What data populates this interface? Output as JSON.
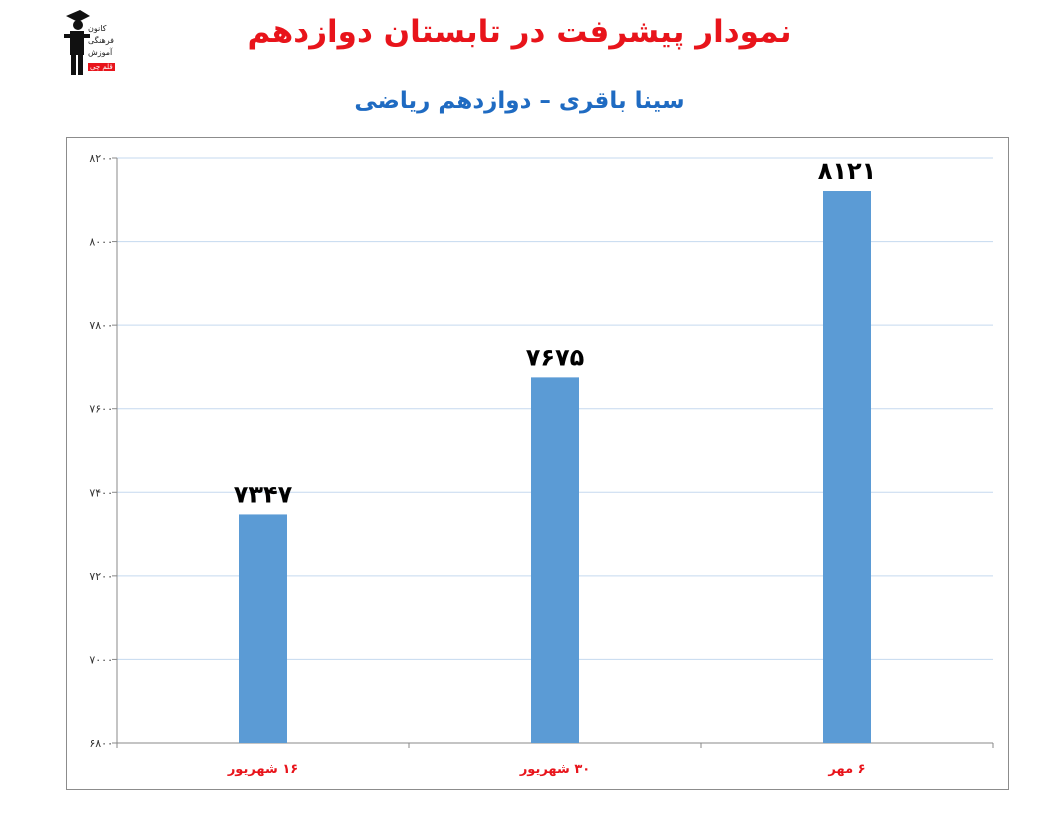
{
  "header": {
    "title": "نمودار پیشرفت در تابستان دوازدهم",
    "subtitle": "سینا باقری – دوازدهم ریاضی"
  },
  "logo": {
    "lines": [
      "کانون",
      "فرهنگی",
      "آموزش"
    ],
    "badge": "قلم چی"
  },
  "colors": {
    "title": "#e8141b",
    "subtitle": "#1f6bc2",
    "bar": "#5b9bd5",
    "grid": "#c5d9ef",
    "category_label": "#e8141b",
    "data_label": "#000000"
  },
  "chart_data": {
    "type": "bar",
    "categories": [
      "۱۶ شهریور",
      "۳۰ شهریور",
      "۶ مهر"
    ],
    "values": [
      7347,
      7675,
      8121
    ],
    "value_labels": [
      "۷۳۴۷",
      "۷۶۷۵",
      "۸۱۲۱"
    ],
    "title": "",
    "xlabel": "",
    "ylabel": "",
    "ylim": [
      6800,
      8200
    ],
    "yticks": [
      6800,
      7000,
      7200,
      7400,
      7600,
      7800,
      8000,
      8200
    ],
    "ytick_labels": [
      "۶۸۰۰",
      "۷۰۰۰",
      "۷۲۰۰",
      "۷۴۰۰",
      "۷۶۰۰",
      "۷۸۰۰",
      "۸۰۰۰",
      "۸۲۰۰"
    ],
    "grid": true,
    "legend": "none"
  }
}
